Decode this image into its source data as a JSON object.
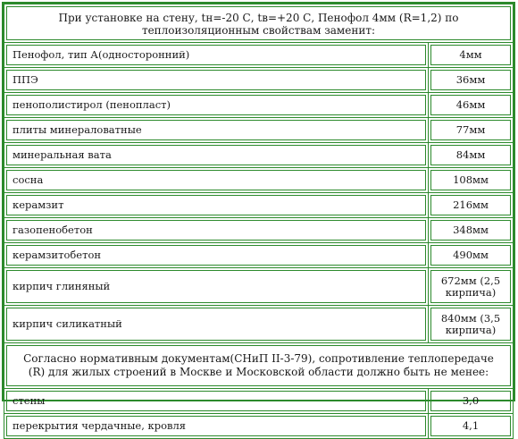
{
  "header": "При установке на стену, tн=-20 С, tв=+20 С, Пенофол 4мм (R=1,2) по теплоизоляционным свойствам заменит:",
  "materials": [
    {
      "name": "Пенофол, тип А(односторонний)",
      "value": "4мм"
    },
    {
      "name": "ППЭ",
      "value": "36мм"
    },
    {
      "name": "пенополистирол (пенопласт)",
      "value": "46мм"
    },
    {
      "name": "плиты минераловатные",
      "value": "77мм"
    },
    {
      "name": "минеральная вата",
      "value": "84мм"
    },
    {
      "name": "сосна",
      "value": "108мм"
    },
    {
      "name": "керамзит",
      "value": "216мм"
    },
    {
      "name": "газопенобетон",
      "value": "348мм"
    },
    {
      "name": "керамзитобетон",
      "value": "490мм"
    },
    {
      "name": "кирпич глиняный",
      "value": "672мм (2,5 кирпича)"
    },
    {
      "name": "кирпич силикатный",
      "value": "840мм (3,5 кирпича)"
    }
  ],
  "note": "Согласно нормативным документам(СНиП II-3-79), сопротивление теплопередаче (R) для жилых строений в Москве и Московской области должно быть не менее:",
  "requirements": [
    {
      "name": "стены",
      "value": "3,0"
    },
    {
      "name": "перекрытия чердачные, кровля",
      "value": "4,1"
    }
  ]
}
